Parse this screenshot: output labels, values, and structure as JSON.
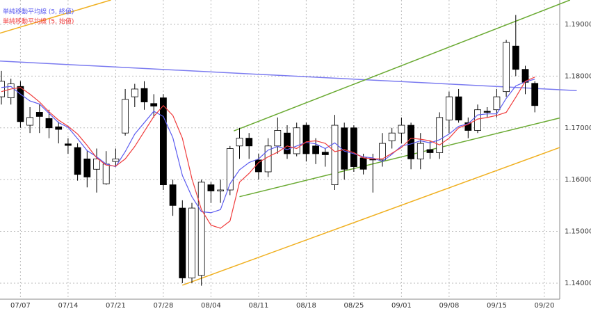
{
  "chart_data": {
    "type": "candlestick",
    "categories": [
      null,
      null,
      "07/07",
      null,
      null,
      null,
      null,
      "07/14",
      null,
      null,
      null,
      null,
      "07/21",
      null,
      null,
      null,
      null,
      "07/28",
      null,
      null,
      null,
      null,
      "08/04",
      null,
      null,
      null,
      null,
      "08/11",
      null,
      null,
      null,
      null,
      "08/18",
      null,
      null,
      null,
      null,
      "08/25",
      null,
      null,
      null,
      null,
      "09/01",
      null,
      null,
      null,
      null,
      "09/08",
      null,
      null,
      null,
      null,
      "09/15",
      null,
      null,
      null,
      null,
      "09/20"
    ],
    "open": [
      1.176,
      1.1758,
      1.178,
      1.1705,
      1.173,
      1.1718,
      1.1702,
      1.1669,
      1.1662,
      1.164,
      1.162,
      1.1592,
      1.1635,
      1.169,
      1.176,
      1.1776,
      1.1747,
      1.1758,
      1.159,
      1.1545,
      1.141,
      1.1415,
      1.159,
      1.1578,
      1.158,
      1.1665,
      1.168,
      1.1638,
      1.1615,
      1.1665,
      1.169,
      1.165,
      1.1705,
      1.1665,
      1.1653,
      1.159,
      1.17,
      1.17,
      1.1642,
      1.164,
      1.1638,
      1.1675,
      1.169,
      1.1705,
      1.164,
      1.1658,
      1.1652,
      1.1715,
      1.176,
      1.171,
      1.1695,
      1.1732,
      1.1735,
      1.177,
      1.1858,
      1.1813,
      1.1786,
      null
    ],
    "high": [
      1.181,
      1.1795,
      1.179,
      1.174,
      1.1745,
      1.1735,
      1.1712,
      1.168,
      1.167,
      1.1655,
      1.166,
      1.1655,
      1.166,
      1.1775,
      1.1785,
      1.179,
      1.1765,
      1.1765,
      1.16,
      1.156,
      1.1555,
      1.16,
      1.1595,
      1.16,
      1.1665,
      1.17,
      1.169,
      1.165,
      1.168,
      1.172,
      1.1705,
      1.171,
      1.171,
      1.168,
      1.166,
      1.1725,
      1.171,
      1.1705,
      1.165,
      1.165,
      1.169,
      1.17,
      1.172,
      1.171,
      1.169,
      1.1675,
      1.173,
      1.177,
      1.1775,
      1.172,
      1.1745,
      1.174,
      1.1775,
      1.187,
      1.1918,
      1.182,
      1.179,
      null
    ],
    "low": [
      1.1745,
      1.1745,
      1.17,
      1.169,
      1.169,
      1.168,
      1.167,
      1.165,
      1.1598,
      1.1585,
      1.1575,
      1.159,
      1.1625,
      1.1685,
      1.174,
      1.1735,
      1.172,
      1.158,
      1.153,
      1.14,
      1.14,
      1.1395,
      1.1555,
      1.1555,
      1.157,
      1.164,
      1.164,
      1.16,
      1.1605,
      1.165,
      1.164,
      1.1645,
      1.1635,
      1.163,
      1.1625,
      1.158,
      1.16,
      1.1615,
      1.161,
      1.1575,
      1.1625,
      1.166,
      1.167,
      1.162,
      1.162,
      1.164,
      1.164,
      1.169,
      1.171,
      1.168,
      1.169,
      1.172,
      1.172,
      1.176,
      1.18,
      1.1765,
      1.173,
      null
    ],
    "close": [
      1.179,
      1.1785,
      1.1712,
      1.172,
      1.1722,
      1.17,
      1.1697,
      1.1666,
      1.161,
      1.1605,
      1.164,
      1.163,
      1.164,
      1.1755,
      1.1775,
      1.175,
      1.1742,
      1.159,
      1.155,
      1.141,
      1.1545,
      1.1595,
      1.1578,
      1.158,
      1.166,
      1.168,
      1.1665,
      1.1615,
      1.1665,
      1.1695,
      1.165,
      1.17,
      1.165,
      1.165,
      1.1648,
      1.1705,
      1.162,
      1.1625,
      1.162,
      1.1638,
      1.167,
      1.169,
      1.1705,
      1.164,
      1.167,
      1.1652,
      1.172,
      1.176,
      1.1715,
      1.1695,
      1.1735,
      1.173,
      1.176,
      1.1865,
      1.1813,
      1.1788,
      1.1743,
      null
    ],
    "series": [
      {
        "name": "単純移動平均線 (5, 終値)",
        "color": "#5b5bf0",
        "values": [
          1.1778,
          1.178,
          1.1765,
          1.1752,
          1.1746,
          1.1728,
          1.171,
          1.1701,
          1.1679,
          1.1656,
          1.1644,
          1.163,
          1.1625,
          1.1654,
          1.1688,
          1.171,
          1.1732,
          1.1722,
          1.1681,
          1.1608,
          1.1567,
          1.1538,
          1.1536,
          1.1542,
          1.1592,
          1.1619,
          1.1633,
          1.164,
          1.1657,
          1.1664,
          1.1658,
          1.1665,
          1.1672,
          1.1669,
          1.166,
          1.1671,
          1.1655,
          1.165,
          1.1644,
          1.1642,
          1.1635,
          1.1649,
          1.1665,
          1.1669,
          1.1675,
          1.1671,
          1.1677,
          1.1688,
          1.1703,
          1.1708,
          1.1725,
          1.1727,
          1.1727,
          1.1757,
          1.1781,
          1.1789,
          1.1794,
          null
        ]
      },
      {
        "name": "単純移動平均線 (5, 始値)",
        "color": "#f03c3c",
        "values": [
          1.177,
          1.1775,
          1.1778,
          1.1765,
          1.175,
          1.1731,
          1.1715,
          1.1703,
          1.1688,
          1.1666,
          1.1642,
          1.1628,
          1.1626,
          1.164,
          1.1664,
          1.1693,
          1.1722,
          1.1743,
          1.1724,
          1.168,
          1.1602,
          1.1542,
          1.1512,
          1.1506,
          1.152,
          1.1595,
          1.1612,
          1.1633,
          1.1644,
          1.1653,
          1.1665,
          1.166,
          1.1673,
          1.1675,
          1.167,
          1.1654,
          1.1658,
          1.1652,
          1.1642,
          1.164,
          1.164,
          1.1651,
          1.1662,
          1.168,
          1.1678,
          1.1675,
          1.1667,
          1.168,
          1.17,
          1.1707,
          1.1717,
          1.172,
          1.1724,
          1.173,
          1.1759,
          1.179,
          1.1798,
          null
        ]
      }
    ],
    "trend_lines": [
      {
        "color": "#7b7bf0",
        "points": [
          [
            -0.15,
            1.1829
          ],
          [
            60.4,
            1.1772
          ]
        ]
      },
      {
        "color": "#6aaa32",
        "points": [
          [
            24.4,
            1.1694
          ],
          [
            59.7,
            1.1947
          ]
        ]
      },
      {
        "color": "#6aaa32",
        "points": [
          [
            25.0,
            1.1567
          ],
          [
            58.6,
            1.1719
          ]
        ]
      },
      {
        "color": "#f0b020",
        "points": [
          [
            19.0,
            1.1396
          ],
          [
            58.6,
            1.1662
          ]
        ]
      },
      {
        "color": "#f0b020",
        "points": [
          [
            -0.15,
            1.1883
          ],
          [
            11.5,
            1.1947
          ]
        ]
      }
    ],
    "ylim": [
      1.1369,
      1.1947
    ],
    "yticks": [
      {
        "value": 1.14,
        "label": "1.14000"
      },
      {
        "value": 1.15,
        "label": "1.15000"
      },
      {
        "value": 1.16,
        "label": "1.16000"
      },
      {
        "value": 1.17,
        "label": "1.17000"
      },
      {
        "value": 1.18,
        "label": "1.18000"
      },
      {
        "value": 1.19,
        "label": "1.19000"
      }
    ],
    "grid": true
  }
}
